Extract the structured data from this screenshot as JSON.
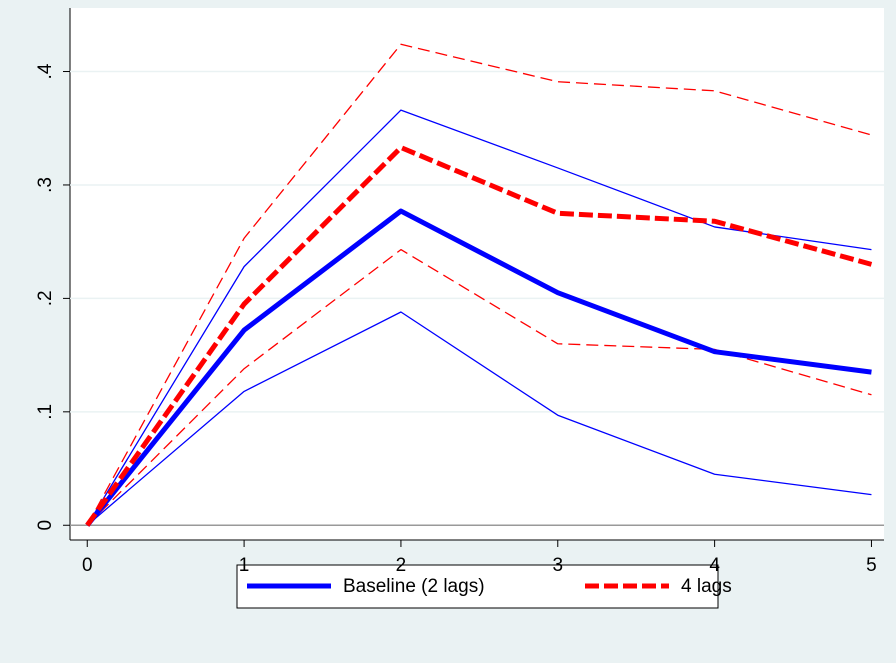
{
  "chart_data": {
    "type": "line",
    "x": [
      0,
      1,
      2,
      3,
      4,
      5
    ],
    "xlim": [
      -0.11,
      5.08
    ],
    "xticks": [
      0,
      1,
      2,
      3,
      4,
      5
    ],
    "ylim": [
      -0.013,
      0.456
    ],
    "yticks": [
      0,
      {
        "value": 0.1,
        "label": ".1"
      },
      {
        "value": 0.2,
        "label": ".2"
      },
      {
        "value": 0.3,
        "label": ".3"
      },
      {
        "value": 0.4,
        "label": ".4"
      }
    ],
    "grid": true,
    "zero_line": true,
    "legend": "bottom",
    "series": [
      {
        "name": "Baseline (2 lags)",
        "color": "#0000ff",
        "dashed": false,
        "values": [
          0,
          0.172,
          0.277,
          0.205,
          0.153,
          0.135
        ],
        "upper": [
          0,
          0.228,
          0.366,
          0.315,
          0.263,
          0.243
        ],
        "lower": [
          0,
          0.118,
          0.188,
          0.097,
          0.045,
          0.027
        ]
      },
      {
        "name": "4 lags",
        "color": "#ff0000",
        "dashed": true,
        "values": [
          0,
          0.195,
          0.333,
          0.275,
          0.268,
          0.23
        ],
        "upper": [
          0,
          0.253,
          0.424,
          0.391,
          0.383,
          0.344
        ],
        "lower": [
          0,
          0.138,
          0.243,
          0.16,
          0.155,
          0.115
        ]
      }
    ]
  }
}
